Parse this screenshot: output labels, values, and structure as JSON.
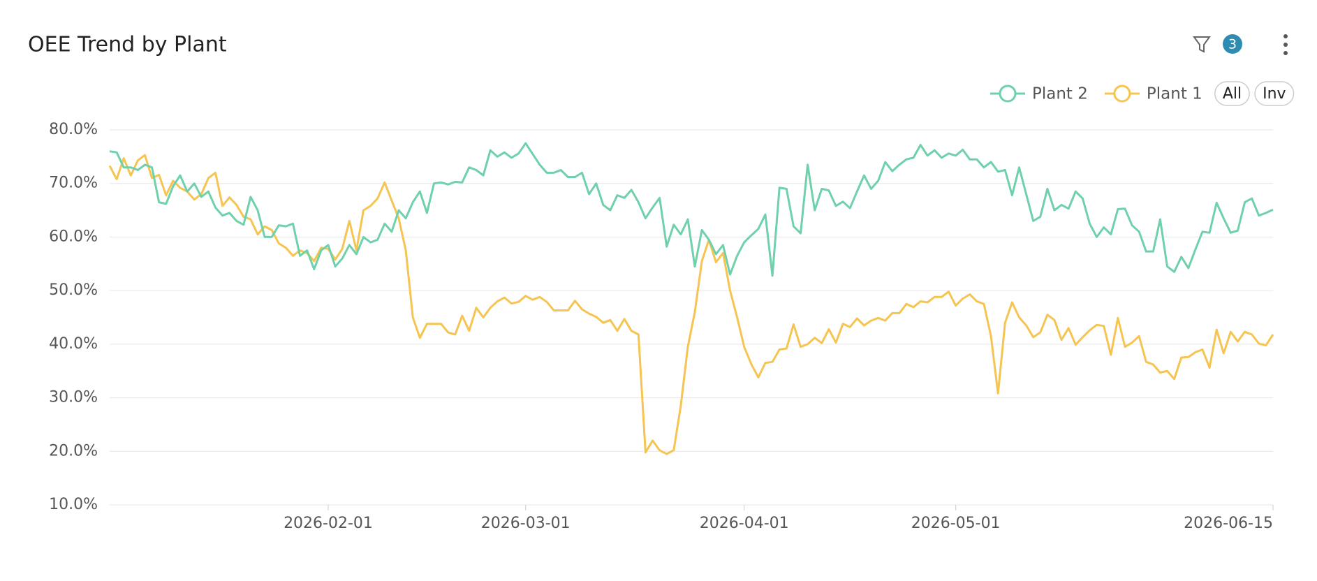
{
  "chart_data": {
    "type": "line",
    "title": "OEE Trend by Plant",
    "x": [
      "2026-01-01",
      "2026-01-02",
      "2026-01-03",
      "2026-01-04",
      "2026-01-05",
      "2026-01-06",
      "2026-01-07",
      "2026-01-08",
      "2026-01-09",
      "2026-01-10",
      "2026-01-11",
      "2026-01-12",
      "2026-01-13",
      "2026-01-14",
      "2026-01-15",
      "2026-01-16",
      "2026-01-17",
      "2026-01-18",
      "2026-01-19",
      "2026-01-20",
      "2026-01-21",
      "2026-01-22",
      "2026-01-23",
      "2026-01-24",
      "2026-01-25",
      "2026-01-26",
      "2026-01-27",
      "2026-01-28",
      "2026-01-29",
      "2026-01-30",
      "2026-01-31",
      "2026-02-01",
      "2026-02-02",
      "2026-02-03",
      "2026-02-04",
      "2026-02-05",
      "2026-02-06",
      "2026-02-07",
      "2026-02-08",
      "2026-02-09",
      "2026-02-10",
      "2026-02-11",
      "2026-02-12",
      "2026-02-13",
      "2026-02-14",
      "2026-02-15",
      "2026-02-16",
      "2026-02-17",
      "2026-02-18",
      "2026-02-19",
      "2026-02-20",
      "2026-02-21",
      "2026-02-22",
      "2026-02-23",
      "2026-02-24",
      "2026-02-25",
      "2026-02-26",
      "2026-02-27",
      "2026-02-28",
      "2026-03-01",
      "2026-03-02",
      "2026-03-03",
      "2026-03-04",
      "2026-03-05",
      "2026-03-06",
      "2026-03-07",
      "2026-03-08",
      "2026-03-09",
      "2026-03-10",
      "2026-03-11",
      "2026-03-12",
      "2026-03-13",
      "2026-03-14",
      "2026-03-15",
      "2026-03-16",
      "2026-03-17",
      "2026-03-18",
      "2026-03-19",
      "2026-03-20",
      "2026-03-21",
      "2026-03-22",
      "2026-03-23",
      "2026-03-24",
      "2026-03-25",
      "2026-03-26",
      "2026-03-27",
      "2026-03-28",
      "2026-03-29",
      "2026-03-30",
      "2026-03-31",
      "2026-04-01",
      "2026-04-02",
      "2026-04-03",
      "2026-04-04",
      "2026-04-05",
      "2026-04-06",
      "2026-04-07",
      "2026-04-08",
      "2026-04-09",
      "2026-04-10",
      "2026-04-11",
      "2026-04-12",
      "2026-04-13",
      "2026-04-14",
      "2026-04-15",
      "2026-04-16",
      "2026-04-17",
      "2026-04-18",
      "2026-04-19",
      "2026-04-20",
      "2026-04-21",
      "2026-04-22",
      "2026-04-23",
      "2026-04-24",
      "2026-04-25",
      "2026-04-26",
      "2026-04-27",
      "2026-04-28",
      "2026-04-29",
      "2026-04-30",
      "2026-05-01",
      "2026-05-02",
      "2026-05-03",
      "2026-05-04",
      "2026-05-05",
      "2026-05-06",
      "2026-05-07",
      "2026-05-08",
      "2026-05-09",
      "2026-05-10",
      "2026-05-11",
      "2026-05-12",
      "2026-05-13",
      "2026-05-14",
      "2026-05-15",
      "2026-05-16",
      "2026-05-17",
      "2026-05-18",
      "2026-05-19",
      "2026-05-20",
      "2026-05-21",
      "2026-05-22",
      "2026-05-23",
      "2026-05-24",
      "2026-05-25",
      "2026-05-26",
      "2026-05-27",
      "2026-05-28",
      "2026-05-29",
      "2026-05-30",
      "2026-05-31",
      "2026-06-01",
      "2026-06-02",
      "2026-06-03",
      "2026-06-04",
      "2026-06-05",
      "2026-06-06",
      "2026-06-07",
      "2026-06-08",
      "2026-06-09",
      "2026-06-10",
      "2026-06-11",
      "2026-06-12",
      "2026-06-13",
      "2026-06-14",
      "2026-06-15"
    ],
    "series": [
      {
        "name": "Plant 2",
        "color": "#6fd0ac",
        "values": [
          76,
          75.8,
          73,
          73,
          72.5,
          73.5,
          73,
          66.5,
          66.2,
          69.5,
          71.5,
          68.5,
          70,
          67.5,
          68.5,
          65.5,
          64,
          64.5,
          63,
          62.3,
          67.5,
          65,
          60,
          60,
          62.2,
          62,
          62.5,
          56.5,
          57.5,
          54,
          57.5,
          58.5,
          54.5,
          56,
          58.5,
          56.8,
          60,
          59,
          59.5,
          62.5,
          61,
          65,
          63.5,
          66.5,
          68.5,
          64.5,
          70,
          70.2,
          69.8,
          70.3,
          70.2,
          73,
          72.5,
          71.5,
          76.2,
          75,
          75.8,
          74.8,
          75.6,
          77.5,
          75.5,
          73.5,
          72,
          72,
          72.5,
          71.2,
          71.2,
          72,
          68,
          70,
          66,
          65,
          67.8,
          67.3,
          68.8,
          66.5,
          63.5,
          65.5,
          67.3,
          58.2,
          62.3,
          60.5,
          63.3,
          54.5,
          61.3,
          59.5,
          56.8,
          58.5,
          53,
          56.5,
          59,
          60.3,
          61.5,
          64.2,
          52.8,
          69.2,
          69,
          62,
          60.7,
          73.5,
          65,
          69,
          68.7,
          65.8,
          66.6,
          65.4,
          68.5,
          71.5,
          69,
          70.5,
          74,
          72.3,
          73.5,
          74.5,
          74.8,
          77.2,
          75.2,
          76.2,
          74.8,
          75.6,
          75.2,
          76.3,
          74.5,
          74.5,
          73,
          74,
          72.2,
          72.5,
          67.8,
          73,
          68,
          63,
          63.8,
          69,
          65,
          66,
          65.3,
          68.5,
          67.2,
          62.5,
          60,
          61.8,
          60.5,
          65.2,
          65.3,
          62.2,
          61,
          57.3,
          57.3,
          63.3,
          54.5,
          53.5,
          56.3,
          54.2,
          57.7,
          61,
          60.8,
          66.4,
          63.5,
          60.8,
          61.2,
          66.5,
          67.2,
          64,
          64.5,
          65.1
        ]
      },
      {
        "name": "Plant 1",
        "color": "#f5c451",
        "values": [
          73.3,
          70.8,
          74.7,
          71.5,
          74.3,
          75.3,
          71,
          71.6,
          67.8,
          70.5,
          69.2,
          68.5,
          67,
          68,
          71,
          72,
          65.8,
          67.4,
          66,
          63.8,
          63.3,
          60.5,
          62,
          61.3,
          58.8,
          58,
          56.5,
          57.5,
          57,
          55.5,
          58,
          57.8,
          55.8,
          57.8,
          63,
          57.5,
          65,
          65.8,
          67.2,
          70.2,
          66.8,
          63.5,
          57.5,
          45,
          41.2,
          43.8,
          43.8,
          43.8,
          42.2,
          41.8,
          45.3,
          42.5,
          46.8,
          45,
          46.8,
          48,
          48.7,
          47.6,
          47.9,
          49,
          48.3,
          48.8,
          47.9,
          46.3,
          46.3,
          46.3,
          48.1,
          46.5,
          45.7,
          45.1,
          44,
          44.5,
          42.5,
          44.7,
          42.5,
          41.8,
          19.8,
          22,
          20.2,
          19.5,
          20.2,
          28.5,
          39.5,
          46,
          55.5,
          59.5,
          55.3,
          57,
          50,
          45,
          39.5,
          36.3,
          33.8,
          36.5,
          36.7,
          39,
          39.2,
          43.7,
          39.5,
          40,
          41.2,
          40.2,
          42.8,
          40.3,
          43.8,
          43.2,
          44.8,
          43.5,
          44.4,
          44.9,
          44.4,
          45.8,
          45.8,
          47.5,
          46.9,
          48,
          47.8,
          48.8,
          48.8,
          49.8,
          47.2,
          48.5,
          49.3,
          48,
          47.5,
          41.5,
          30.8,
          44,
          47.8,
          45,
          43.5,
          41.3,
          42.2,
          45.5,
          44.5,
          40.8,
          43,
          39.9,
          41.3,
          42.6,
          43.6,
          43.4,
          38,
          44.9,
          39.5,
          40.3,
          41.5,
          36.7,
          36.2,
          34.7,
          35,
          33.5,
          37.5,
          37.6,
          38.5,
          39,
          35.6,
          42.7,
          38.3,
          42.3,
          40.5,
          42.3,
          41.8,
          40.1,
          39.8,
          41.8
        ]
      }
    ],
    "ylim": [
      10,
      80
    ],
    "yticks": [
      {
        "value": 10,
        "label": "10.0%"
      },
      {
        "value": 20,
        "label": "20.0%"
      },
      {
        "value": 30,
        "label": "30.0%"
      },
      {
        "value": 40,
        "label": "40.0%"
      },
      {
        "value": 50,
        "label": "50.0%"
      },
      {
        "value": 60,
        "label": "60.0%"
      },
      {
        "value": 70,
        "label": "70.0%"
      },
      {
        "value": 80,
        "label": "80.0%"
      }
    ],
    "xticks": [
      "2026-02-01",
      "2026-03-01",
      "2026-04-01",
      "2026-05-01",
      "2026-06-15"
    ],
    "grid": true,
    "legend": "top-right"
  },
  "controls": {
    "filter_count": "3",
    "buttons": [
      "All",
      "Inv"
    ]
  }
}
